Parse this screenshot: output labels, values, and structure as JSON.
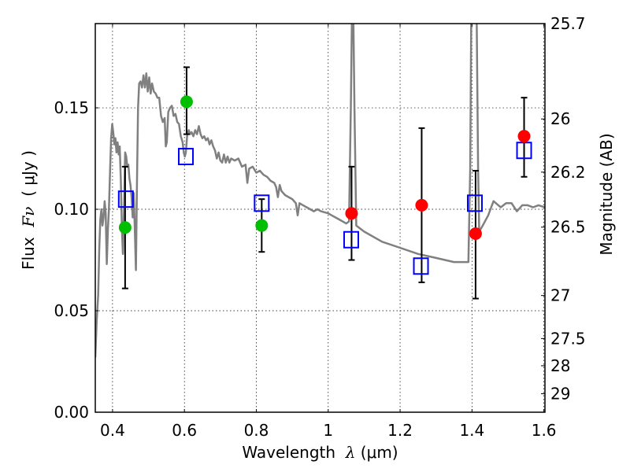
{
  "chart_data": {
    "type": "scatter",
    "title": "",
    "xlabel": "Wavelength  λ (μm)",
    "xlabel_parts": {
      "prefix": "Wavelength  ",
      "symbol": "λ",
      "suffix": " (μm)"
    },
    "ylabel": "Flux  Fν  ( μJy )",
    "ylabel_parts": {
      "prefix": "Flux  ",
      "symbol": "Fν",
      "suffix": "  ( μJy )"
    },
    "ylabel_right": "Magnitude (AB)",
    "xlim": [
      0.352,
      1.603
    ],
    "ylim": [
      0.0,
      0.1915
    ],
    "grid": true,
    "x_ticks": [
      {
        "value": 0.4,
        "label": "0.4"
      },
      {
        "value": 0.6,
        "label": "0.6"
      },
      {
        "value": 0.8,
        "label": "0.8"
      },
      {
        "value": 1.0,
        "label": "1"
      },
      {
        "value": 1.2,
        "label": "1.2"
      },
      {
        "value": 1.4,
        "label": "1.4"
      },
      {
        "value": 1.6,
        "label": "1.6"
      }
    ],
    "y_ticks": [
      {
        "value": 0.0,
        "label": "0.00"
      },
      {
        "value": 0.05,
        "label": "0.05"
      },
      {
        "value": 0.1,
        "label": "0.10"
      },
      {
        "value": 0.15,
        "label": "0.15"
      }
    ],
    "right_ticks": [
      {
        "label": "25.7",
        "flux": 0.1915
      },
      {
        "label": "26",
        "flux": 0.1445
      },
      {
        "label": "26.2",
        "flux": 0.1183
      },
      {
        "label": "26.5",
        "flux": 0.0912
      },
      {
        "label": "27",
        "flux": 0.0575
      },
      {
        "label": "27.5",
        "flux": 0.0363
      },
      {
        "label": "28",
        "flux": 0.0229
      },
      {
        "label": "29",
        "flux": 0.0091
      }
    ],
    "series": [
      {
        "name": "model spectrum",
        "kind": "line",
        "color": "#808080",
        "points": [
          [
            0.352,
            0.027
          ],
          [
            0.356,
            0.045
          ],
          [
            0.36,
            0.058
          ],
          [
            0.363,
            0.08
          ],
          [
            0.366,
            0.095
          ],
          [
            0.369,
            0.1
          ],
          [
            0.372,
            0.092
          ],
          [
            0.375,
            0.096
          ],
          [
            0.378,
            0.104
          ],
          [
            0.381,
            0.098
          ],
          [
            0.384,
            0.073
          ],
          [
            0.387,
            0.09
          ],
          [
            0.39,
            0.1
          ],
          [
            0.393,
            0.118
          ],
          [
            0.396,
            0.135
          ],
          [
            0.399,
            0.142
          ],
          [
            0.402,
            0.138
          ],
          [
            0.405,
            0.132
          ],
          [
            0.408,
            0.135
          ],
          [
            0.411,
            0.128
          ],
          [
            0.414,
            0.133
          ],
          [
            0.417,
            0.127
          ],
          [
            0.42,
            0.131
          ],
          [
            0.423,
            0.115
          ],
          [
            0.426,
            0.09
          ],
          [
            0.429,
            0.078
          ],
          [
            0.432,
            0.1
          ],
          [
            0.435,
            0.128
          ],
          [
            0.438,
            0.126
          ],
          [
            0.441,
            0.121
          ],
          [
            0.444,
            0.122
          ],
          [
            0.447,
            0.115
          ],
          [
            0.45,
            0.112
          ],
          [
            0.453,
            0.106
          ],
          [
            0.456,
            0.096
          ],
          [
            0.459,
            0.108
          ],
          [
            0.462,
            0.09
          ],
          [
            0.465,
            0.07
          ],
          [
            0.468,
            0.112
          ],
          [
            0.471,
            0.15
          ],
          [
            0.474,
            0.162
          ],
          [
            0.478,
            0.163
          ],
          [
            0.482,
            0.16
          ],
          [
            0.486,
            0.166
          ],
          [
            0.49,
            0.16
          ],
          [
            0.494,
            0.167
          ],
          [
            0.498,
            0.158
          ],
          [
            0.502,
            0.165
          ],
          [
            0.506,
            0.157
          ],
          [
            0.51,
            0.162
          ],
          [
            0.515,
            0.158
          ],
          [
            0.52,
            0.157
          ],
          [
            0.525,
            0.155
          ],
          [
            0.53,
            0.155
          ],
          [
            0.535,
            0.146
          ],
          [
            0.54,
            0.143
          ],
          [
            0.545,
            0.145
          ],
          [
            0.548,
            0.131
          ],
          [
            0.551,
            0.133
          ],
          [
            0.555,
            0.148
          ],
          [
            0.56,
            0.15
          ],
          [
            0.565,
            0.151
          ],
          [
            0.57,
            0.146
          ],
          [
            0.575,
            0.147
          ],
          [
            0.58,
            0.143
          ],
          [
            0.585,
            0.142
          ],
          [
            0.59,
            0.136
          ],
          [
            0.595,
            0.133
          ],
          [
            0.598,
            0.128
          ],
          [
            0.601,
            0.126
          ],
          [
            0.604,
            0.128
          ],
          [
            0.608,
            0.137
          ],
          [
            0.612,
            0.139
          ],
          [
            0.616,
            0.137
          ],
          [
            0.62,
            0.138
          ],
          [
            0.625,
            0.136
          ],
          [
            0.63,
            0.139
          ],
          [
            0.635,
            0.137
          ],
          [
            0.64,
            0.141
          ],
          [
            0.645,
            0.137
          ],
          [
            0.65,
            0.135
          ],
          [
            0.655,
            0.136
          ],
          [
            0.66,
            0.134
          ],
          [
            0.665,
            0.135
          ],
          [
            0.67,
            0.132
          ],
          [
            0.675,
            0.134
          ],
          [
            0.68,
            0.131
          ],
          [
            0.685,
            0.129
          ],
          [
            0.69,
            0.125
          ],
          [
            0.695,
            0.128
          ],
          [
            0.7,
            0.124
          ],
          [
            0.705,
            0.123
          ],
          [
            0.71,
            0.127
          ],
          [
            0.715,
            0.123
          ],
          [
            0.72,
            0.126
          ],
          [
            0.725,
            0.123
          ],
          [
            0.73,
            0.125
          ],
          [
            0.74,
            0.124
          ],
          [
            0.75,
            0.125
          ],
          [
            0.76,
            0.121
          ],
          [
            0.77,
            0.122
          ],
          [
            0.775,
            0.113
          ],
          [
            0.78,
            0.12
          ],
          [
            0.79,
            0.121
          ],
          [
            0.8,
            0.118
          ],
          [
            0.81,
            0.119
          ],
          [
            0.82,
            0.117
          ],
          [
            0.83,
            0.116
          ],
          [
            0.84,
            0.114
          ],
          [
            0.85,
            0.113
          ],
          [
            0.855,
            0.111
          ],
          [
            0.86,
            0.106
          ],
          [
            0.865,
            0.112
          ],
          [
            0.87,
            0.109
          ],
          [
            0.88,
            0.107
          ],
          [
            0.89,
            0.106
          ],
          [
            0.9,
            0.105
          ],
          [
            0.91,
            0.103
          ],
          [
            0.915,
            0.097
          ],
          [
            0.92,
            0.103
          ],
          [
            0.93,
            0.102
          ],
          [
            0.94,
            0.101
          ],
          [
            0.95,
            0.1
          ],
          [
            0.96,
            0.099
          ],
          [
            0.97,
            0.1
          ],
          [
            0.98,
            0.099
          ],
          [
            1.0,
            0.098
          ],
          [
            1.01,
            0.097
          ],
          [
            1.03,
            0.095
          ],
          [
            1.05,
            0.093
          ],
          [
            1.058,
            0.094
          ],
          [
            1.063,
            0.15
          ],
          [
            1.066,
            0.195
          ],
          [
            1.07,
            0.195
          ],
          [
            1.073,
            0.15
          ],
          [
            1.078,
            0.092
          ],
          [
            1.1,
            0.089
          ],
          [
            1.15,
            0.084
          ],
          [
            1.2,
            0.081
          ],
          [
            1.25,
            0.078
          ],
          [
            1.3,
            0.076
          ],
          [
            1.35,
            0.074
          ],
          [
            1.39,
            0.074
          ],
          [
            1.395,
            0.12
          ],
          [
            1.398,
            0.195
          ],
          [
            1.413,
            0.195
          ],
          [
            1.417,
            0.12
          ],
          [
            1.42,
            0.089
          ],
          [
            1.43,
            0.092
          ],
          [
            1.445,
            0.097
          ],
          [
            1.46,
            0.104
          ],
          [
            1.48,
            0.101
          ],
          [
            1.495,
            0.103
          ],
          [
            1.51,
            0.103
          ],
          [
            1.525,
            0.099
          ],
          [
            1.54,
            0.102
          ],
          [
            1.555,
            0.102
          ],
          [
            1.57,
            0.101
          ],
          [
            1.585,
            0.102
          ],
          [
            1.603,
            0.101
          ]
        ]
      },
      {
        "name": "observed (green)",
        "kind": "circle",
        "color": "#00bf00",
        "x": [
          0.435,
          0.606,
          0.815
        ],
        "y": [
          0.091,
          0.153,
          0.092
        ]
      },
      {
        "name": "observed (red)",
        "kind": "circle",
        "color": "#ff0000",
        "x": [
          1.065,
          1.26,
          1.41,
          1.545
        ],
        "y": [
          0.098,
          0.102,
          0.088,
          0.136
        ]
      },
      {
        "name": "model photometry",
        "kind": "open-square",
        "color": "#0000ff",
        "x": [
          0.437,
          0.604,
          0.815,
          1.064,
          1.258,
          1.408,
          1.545
        ],
        "y": [
          0.105,
          0.126,
          0.103,
          0.085,
          0.072,
          0.103,
          0.129
        ]
      },
      {
        "name": "error bars",
        "kind": "errorbar",
        "color": "#000000",
        "x": [
          0.435,
          0.606,
          0.815,
          1.065,
          1.26,
          1.41,
          1.545
        ],
        "low": [
          0.061,
          0.137,
          0.079,
          0.075,
          0.064,
          0.056,
          0.116
        ],
        "high": [
          0.121,
          0.17,
          0.105,
          0.121,
          0.14,
          0.119,
          0.155
        ]
      }
    ]
  }
}
